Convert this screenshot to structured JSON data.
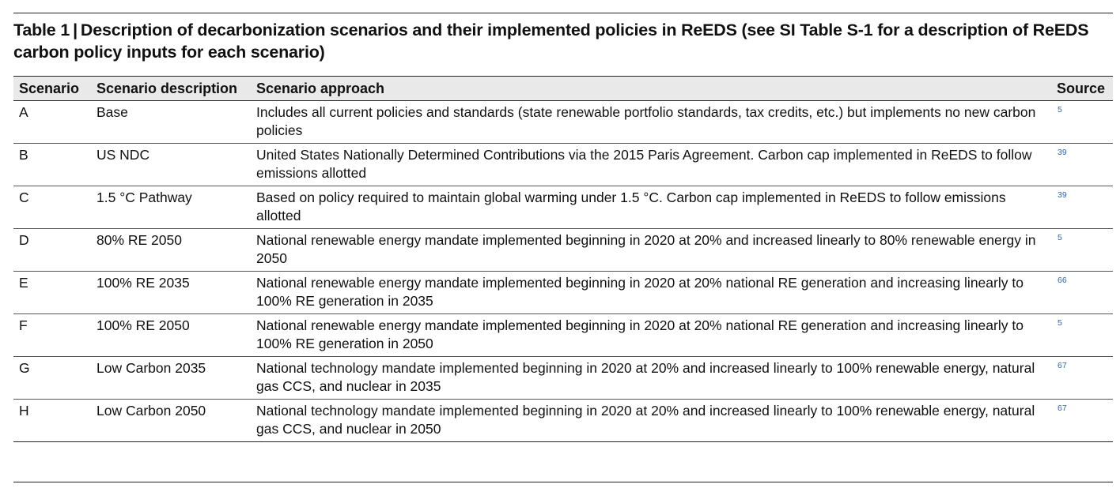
{
  "caption": {
    "label": "Table 1",
    "text": "Description of decarbonization scenarios and their implemented policies in ReEDS (see SI Table S-1 for a description of ReEDS carbon policy inputs for each scenario)"
  },
  "table": {
    "headers": [
      "Scenario",
      "Scenario description",
      "Scenario approach",
      "Source"
    ],
    "rows": [
      {
        "scenario": "A",
        "description": "Base",
        "approach": "Includes all current policies and standards (state renewable portfolio standards, tax credits, etc.) but implements no new carbon policies",
        "source": "5"
      },
      {
        "scenario": "B",
        "description": "US NDC",
        "approach": "United States Nationally Determined Contributions via the 2015 Paris Agreement. Carbon cap implemented in ReEDS to follow emissions allotted",
        "source": "39"
      },
      {
        "scenario": "C",
        "description": "1.5 °C Pathway",
        "approach": "Based on policy required to maintain global warming under 1.5 °C. Carbon cap implemented in ReEDS to follow emissions allotted",
        "source": "39"
      },
      {
        "scenario": "D",
        "description": "80% RE 2050",
        "approach": "National renewable energy mandate implemented beginning in 2020 at 20% and increased linearly to 80% renewable energy in 2050",
        "source": "5"
      },
      {
        "scenario": "E",
        "description": "100% RE 2035",
        "approach": "National renewable energy mandate implemented beginning in 2020 at 20% national RE generation and increasing linearly to 100% RE generation in 2035",
        "source": "66"
      },
      {
        "scenario": "F",
        "description": "100% RE 2050",
        "approach": "National renewable energy mandate implemented beginning in 2020 at 20% national RE generation and increasing linearly to 100% RE generation in 2050",
        "source": "5"
      },
      {
        "scenario": "G",
        "description": "Low Carbon 2035",
        "approach": "National technology mandate implemented beginning in 2020 at 20% and increased linearly to 100% renewable energy, natural gas CCS, and nuclear in 2035",
        "source": "67"
      },
      {
        "scenario": "H",
        "description": "Low Carbon 2050",
        "approach": "National technology mandate implemented beginning in 2020 at 20% and increased linearly to 100% renewable energy, natural gas CCS, and nuclear in 2050",
        "source": "67"
      }
    ]
  }
}
